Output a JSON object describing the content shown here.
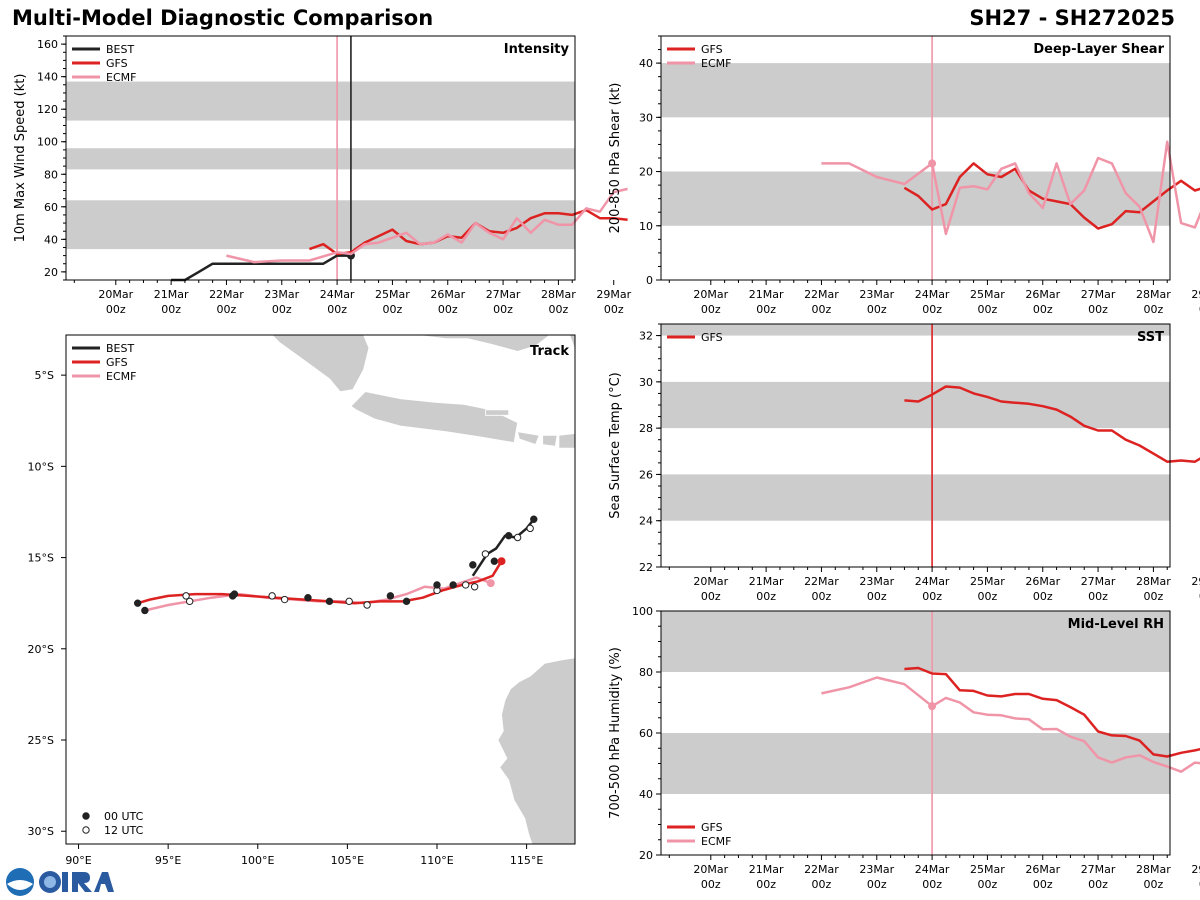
{
  "header": {
    "title": "Multi-Model Diagnostic Comparison",
    "storm_id": "SH27 - SH272025"
  },
  "colors": {
    "best": "#222222",
    "gfs": "#dd2222",
    "ecmf": "#f095a8",
    "band": "#cccccc",
    "land": "#cccccc"
  },
  "time_axis": {
    "ticks": [
      {
        "day": "20Mar",
        "hour": "00z"
      },
      {
        "day": "21Mar",
        "hour": "00z"
      },
      {
        "day": "22Mar",
        "hour": "00z"
      },
      {
        "day": "23Mar",
        "hour": "00z"
      },
      {
        "day": "24Mar",
        "hour": "00z"
      },
      {
        "day": "25Mar",
        "hour": "00z"
      },
      {
        "day": "26Mar",
        "hour": "00z"
      },
      {
        "day": "27Mar",
        "hour": "00z"
      },
      {
        "day": "28Mar",
        "hour": "00z"
      },
      {
        "day": "29Mar",
        "hour": "00z"
      }
    ],
    "range_days": [
      -0.9,
      8.3
    ]
  },
  "chart_data": [
    {
      "id": "intensity",
      "type": "line",
      "title": "Intensity",
      "ylabel": "10m Max Wind Speed (kt)",
      "ylim": [
        15,
        165
      ],
      "yticks": [
        20,
        40,
        60,
        80,
        100,
        120,
        140,
        160
      ],
      "bands": [
        [
          34,
          64
        ],
        [
          83,
          96
        ],
        [
          113,
          137
        ]
      ],
      "vlines": [
        {
          "series": "ECMF",
          "day": 4.0
        },
        {
          "series": "BEST",
          "day": 4.25
        }
      ],
      "legend": [
        "BEST",
        "GFS",
        "ECMF"
      ],
      "series": [
        {
          "name": "BEST",
          "x": [
            1.0,
            1.25,
            1.5,
            1.75,
            2.0,
            2.5,
            3.0,
            3.5,
            3.75,
            4.0,
            4.25
          ],
          "y": [
            15,
            15,
            20,
            25,
            25,
            25,
            25,
            25,
            25,
            30,
            30
          ],
          "marker_last": true
        },
        {
          "name": "GFS",
          "x": [
            3.5,
            3.75,
            4.0,
            4.25,
            4.5,
            4.75,
            5.0,
            5.25,
            5.5,
            5.75,
            6.0,
            6.25,
            6.5,
            6.75,
            7.0,
            7.25,
            7.5,
            7.75,
            8.0,
            8.25,
            8.5,
            8.75,
            9.0,
            9.25
          ],
          "y": [
            34,
            37,
            31,
            32,
            38,
            42,
            46,
            39,
            37,
            38,
            42,
            41,
            50,
            45,
            44,
            47,
            53,
            56,
            56,
            55,
            58,
            53,
            53,
            52
          ]
        },
        {
          "name": "ECMF",
          "x": [
            2.0,
            2.5,
            3.0,
            3.5,
            4.0,
            4.25,
            4.5,
            4.75,
            5.0,
            5.25,
            5.5,
            5.75,
            6.0,
            6.25,
            6.5,
            6.75,
            7.0,
            7.25,
            7.5,
            7.75,
            8.0,
            8.25,
            8.5,
            8.75,
            9.0,
            9.25
          ],
          "y": [
            30,
            26,
            27,
            27,
            32,
            31,
            37,
            38,
            41,
            44,
            37,
            38,
            43,
            38,
            50,
            44,
            40,
            53,
            44,
            52,
            49,
            49,
            59,
            57,
            69,
            71
          ]
        }
      ]
    },
    {
      "id": "shear",
      "type": "line",
      "title": "Deep-Layer Shear",
      "ylabel": "200-850 hPa Shear (kt)",
      "ylim": [
        0,
        45
      ],
      "yticks": [
        0,
        10,
        20,
        30,
        40
      ],
      "bands": [
        [
          10,
          20
        ],
        [
          30,
          40
        ]
      ],
      "vlines": [
        {
          "series": "ECMF",
          "day": 4.0
        }
      ],
      "legend": [
        "GFS",
        "ECMF"
      ],
      "series": [
        {
          "name": "GFS",
          "x": [
            3.5,
            3.75,
            4.0,
            4.25,
            4.5,
            4.75,
            5.0,
            5.25,
            5.5,
            5.75,
            6.0,
            6.25,
            6.5,
            6.75,
            7.0,
            7.25,
            7.5,
            7.75,
            8.0,
            8.25,
            8.5,
            8.75,
            9.0,
            9.25
          ],
          "y": [
            17,
            15.5,
            13,
            14,
            19,
            21.5,
            19.5,
            19,
            20.5,
            16.5,
            15,
            14.5,
            14,
            11.5,
            9.5,
            10.3,
            12.7,
            12.5,
            14.5,
            16.5,
            18.3,
            16.5,
            17.3,
            19.2
          ]
        },
        {
          "name": "ECMF",
          "x": [
            2.0,
            2.5,
            3.0,
            3.5,
            4.0,
            4.25,
            4.5,
            4.75,
            5.0,
            5.25,
            5.5,
            5.75,
            6.0,
            6.25,
            6.5,
            6.75,
            7.0,
            7.25,
            7.5,
            7.75,
            8.0,
            8.25,
            8.5,
            8.75,
            9.0,
            9.25
          ],
          "y": [
            21.5,
            21.5,
            19,
            17.7,
            21.5,
            8.5,
            17,
            17.3,
            16.7,
            20.5,
            21.5,
            16,
            13.3,
            21.5,
            14,
            16.5,
            22.5,
            21.5,
            16,
            13.5,
            7,
            25.5,
            10.5,
            9.7,
            16,
            10.5
          ],
          "marker_at": 4.0
        }
      ]
    },
    {
      "id": "sst",
      "type": "line",
      "title": "SST",
      "ylabel": "Sea Surface Temp (°C)",
      "ylim": [
        22,
        32.5
      ],
      "yticks": [
        22,
        24,
        26,
        28,
        30,
        32
      ],
      "bands": [
        [
          24,
          26
        ],
        [
          28,
          30
        ],
        [
          32,
          32.5
        ]
      ],
      "vlines": [
        {
          "series": "GFS",
          "day": 4.0
        }
      ],
      "legend": [
        "GFS"
      ],
      "series": [
        {
          "name": "GFS",
          "x": [
            3.5,
            3.75,
            4.0,
            4.25,
            4.5,
            4.75,
            5.0,
            5.25,
            5.5,
            5.75,
            6.0,
            6.25,
            6.5,
            6.75,
            7.0,
            7.25,
            7.5,
            7.75,
            8.0,
            8.25,
            8.5,
            8.75,
            9.0,
            9.25
          ],
          "y": [
            29.2,
            29.15,
            29.45,
            29.8,
            29.75,
            29.5,
            29.35,
            29.15,
            29.1,
            29.05,
            28.95,
            28.8,
            28.5,
            28.1,
            27.9,
            27.9,
            27.5,
            27.25,
            26.9,
            26.55,
            26.6,
            26.55,
            26.9,
            27.1
          ]
        }
      ]
    },
    {
      "id": "rh",
      "type": "line",
      "title": "Mid-Level RH",
      "ylabel": "700-500 hPa Humidity (%)",
      "ylim": [
        20,
        100
      ],
      "yticks": [
        20,
        40,
        60,
        80,
        100
      ],
      "bands": [
        [
          40,
          60
        ],
        [
          80,
          100
        ]
      ],
      "vlines": [
        {
          "series": "ECMF",
          "day": 4.0
        }
      ],
      "legend": [
        "GFS",
        "ECMF"
      ],
      "series": [
        {
          "name": "GFS",
          "x": [
            3.5,
            3.75,
            4.0,
            4.25,
            4.5,
            4.75,
            5.0,
            5.25,
            5.5,
            5.75,
            6.0,
            6.25,
            6.5,
            6.75,
            7.0,
            7.25,
            7.5,
            7.75,
            8.0,
            8.25,
            8.5,
            8.75,
            9.0,
            9.25
          ],
          "y": [
            81,
            81.3,
            79.5,
            79.3,
            74,
            73.8,
            72.3,
            72,
            72.8,
            72.8,
            71.2,
            70.8,
            68.5,
            66,
            60.5,
            59.2,
            59,
            57.5,
            53,
            52.3,
            53.5,
            54.3,
            55.3,
            55.5
          ]
        },
        {
          "name": "ECMF",
          "x": [
            2.0,
            2.5,
            3.0,
            3.5,
            4.0,
            4.25,
            4.5,
            4.75,
            5.0,
            5.25,
            5.5,
            5.75,
            6.0,
            6.25,
            6.5,
            6.75,
            7.0,
            7.25,
            7.5,
            7.75,
            8.0,
            8.25,
            8.5,
            8.75,
            9.0,
            9.25
          ],
          "y": [
            73,
            75,
            78.2,
            76,
            68.8,
            71.5,
            70,
            66.8,
            66,
            65.8,
            64.8,
            64.5,
            61.2,
            61.3,
            58.8,
            57.3,
            52,
            50.3,
            52,
            52.7,
            50.5,
            49,
            47.3,
            50.3,
            49.8,
            46
          ],
          "marker_at": 4.0
        }
      ]
    },
    {
      "id": "track",
      "type": "scatter",
      "title": "Track",
      "xlim": [
        89.3,
        117.7
      ],
      "ylim": [
        -30.7,
        -2.8
      ],
      "xticks": [
        {
          "lon": 90,
          "label": "90°E"
        },
        {
          "lon": 95,
          "label": "95°E"
        },
        {
          "lon": 100,
          "label": "100°E"
        },
        {
          "lon": 105,
          "label": "105°E"
        },
        {
          "lon": 110,
          "label": "110°E"
        },
        {
          "lon": 115,
          "label": "115°E"
        }
      ],
      "yticks": [
        {
          "lat": -5,
          "label": "5°S"
        },
        {
          "lat": -10,
          "label": "10°S"
        },
        {
          "lat": -15,
          "label": "15°S"
        },
        {
          "lat": -20,
          "label": "20°S"
        },
        {
          "lat": -25,
          "label": "25°S"
        },
        {
          "lat": -30,
          "label": "30°S"
        }
      ],
      "legend": [
        "BEST",
        "GFS",
        "ECMF"
      ],
      "marker_legend": [
        "00 UTC",
        "12 UTC"
      ],
      "series": [
        {
          "name": "BEST",
          "lon": [
            112.0,
            112.4,
            112.8,
            113.3,
            113.8,
            114.4,
            115.0,
            115.4
          ],
          "lat": [
            -16.0,
            -15.4,
            -14.8,
            -14.5,
            -13.8,
            -13.9,
            -13.4,
            -12.9
          ],
          "markers": [
            {
              "lon": 112.0,
              "lat": -15.4,
              "filled": true
            },
            {
              "lon": 112.7,
              "lat": -14.8,
              "filled": false
            },
            {
              "lon": 113.2,
              "lat": -15.2,
              "filled": true
            },
            {
              "lon": 114.0,
              "lat": -13.8,
              "filled": true
            },
            {
              "lon": 114.5,
              "lat": -13.9,
              "filled": false
            },
            {
              "lon": 115.2,
              "lat": -13.4,
              "filled": false
            },
            {
              "lon": 115.4,
              "lat": -12.9,
              "filled": true
            }
          ]
        },
        {
          "name": "GFS",
          "lon": [
            113.6,
            113.1,
            112.3,
            111.4,
            110.3,
            109.2,
            108.1,
            106.8,
            105.4,
            104.0,
            102.5,
            101.0,
            99.5,
            98.0,
            96.5,
            95.0,
            94.0,
            93.3
          ],
          "lat": [
            -15.2,
            -16.0,
            -16.3,
            -16.5,
            -16.8,
            -17.2,
            -17.4,
            -17.4,
            -17.5,
            -17.4,
            -17.3,
            -17.2,
            -17.1,
            -17.0,
            -17.0,
            -17.1,
            -17.3,
            -17.5
          ],
          "markers": [
            {
              "lon": 93.3,
              "lat": -17.5,
              "filled": true
            },
            {
              "lon": 96.0,
              "lat": -17.1,
              "filled": false
            },
            {
              "lon": 98.7,
              "lat": -17.0,
              "filled": true
            },
            {
              "lon": 100.8,
              "lat": -17.1,
              "filled": false
            },
            {
              "lon": 102.8,
              "lat": -17.2,
              "filled": true
            },
            {
              "lon": 105.1,
              "lat": -17.4,
              "filled": false
            },
            {
              "lon": 107.4,
              "lat": -17.1,
              "filled": true
            },
            {
              "lon": 110.0,
              "lat": -16.5,
              "filled": true
            },
            {
              "lon": 111.6,
              "lat": -16.5,
              "filled": false
            },
            {
              "lon": 113.6,
              "lat": -15.2,
              "filled": true,
              "end": true
            }
          ]
        },
        {
          "name": "ECMF",
          "lon": [
            113.0,
            112.2,
            111.3,
            110.4,
            109.3,
            108.3,
            107.2,
            106.0,
            104.7,
            103.4,
            102.0,
            100.5,
            99.0,
            97.4,
            96.2,
            95.0,
            93.7
          ],
          "lat": [
            -16.4,
            -16.1,
            -16.4,
            -16.7,
            -16.6,
            -17.0,
            -17.3,
            -17.5,
            -17.4,
            -17.4,
            -17.3,
            -17.2,
            -17.0,
            -17.2,
            -17.4,
            -17.6,
            -17.9
          ],
          "markers": [
            {
              "lon": 93.7,
              "lat": -17.9,
              "filled": true
            },
            {
              "lon": 96.2,
              "lat": -17.4,
              "filled": false
            },
            {
              "lon": 98.6,
              "lat": -17.1,
              "filled": true
            },
            {
              "lon": 101.5,
              "lat": -17.3,
              "filled": false
            },
            {
              "lon": 104.0,
              "lat": -17.4,
              "filled": true
            },
            {
              "lon": 106.1,
              "lat": -17.6,
              "filled": false
            },
            {
              "lon": 108.3,
              "lat": -17.4,
              "filled": true
            },
            {
              "lon": 110.0,
              "lat": -16.8,
              "filled": false
            },
            {
              "lon": 110.9,
              "lat": -16.5,
              "filled": true
            },
            {
              "lon": 112.1,
              "lat": -16.6,
              "filled": false
            },
            {
              "lon": 113.0,
              "lat": -16.4,
              "filled": true,
              "end": true
            }
          ]
        }
      ]
    }
  ]
}
